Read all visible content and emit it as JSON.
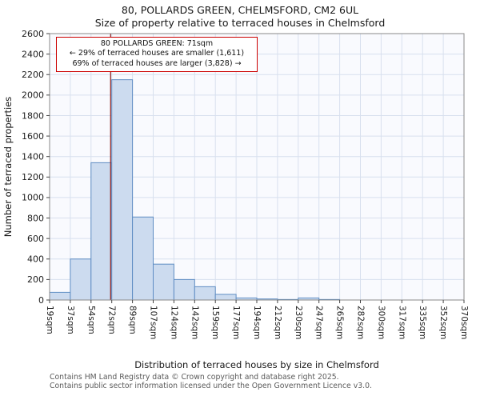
{
  "title": {
    "line1": "80, POLLARDS GREEN, CHELMSFORD, CM2 6UL",
    "line2": "Size of property relative to terraced houses in Chelmsford"
  },
  "annotation": {
    "line1": "80 POLLARDS GREEN: 71sqm",
    "line2": "← 29% of terraced houses are smaller (1,611)",
    "line3": "69% of terraced houses are larger (3,828) →"
  },
  "footer": {
    "line1": "Contains HM Land Registry data © Crown copyright and database right 2025.",
    "line2": "Contains public sector information licensed under the Open Government Licence v3.0."
  },
  "chart_data": {
    "type": "bar",
    "title": "80, POLLARDS GREEN, CHELMSFORD, CM2 6UL — Size of property relative to terraced houses in Chelmsford",
    "xlabel": "Distribution of terraced houses by size in Chelmsford",
    "ylabel": "Number of terraced properties",
    "bin_edges": [
      19,
      37,
      54,
      72,
      89,
      107,
      124,
      142,
      159,
      177,
      194,
      212,
      230,
      247,
      265,
      282,
      300,
      317,
      335,
      352,
      370
    ],
    "tick_labels": [
      "19sqm",
      "37sqm",
      "54sqm",
      "72sqm",
      "89sqm",
      "107sqm",
      "124sqm",
      "142sqm",
      "159sqm",
      "177sqm",
      "194sqm",
      "212sqm",
      "230sqm",
      "247sqm",
      "265sqm",
      "282sqm",
      "300sqm",
      "317sqm",
      "335sqm",
      "352sqm",
      "370sqm"
    ],
    "values": [
      75,
      400,
      1340,
      2150,
      810,
      350,
      200,
      130,
      55,
      20,
      10,
      5,
      20,
      5,
      0,
      0,
      0,
      0,
      0,
      0
    ],
    "ylim": [
      0,
      2600
    ],
    "ytick_step": 200,
    "grid": true,
    "marker_value": 71,
    "colors": {
      "bar_fill": "#ccdbef",
      "bar_stroke": "#5f8dc3",
      "marker_line": "#8b1a1a",
      "grid": "#d8e0ee",
      "plot_bg": "#f9fafe",
      "annotation_border": "#cc0000"
    }
  }
}
